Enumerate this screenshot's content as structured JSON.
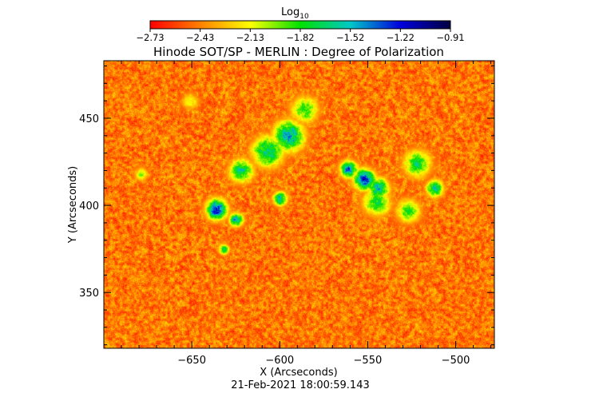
{
  "colorbar": {
    "label_base": "Log",
    "label_sub": "10",
    "min": -2.73,
    "max": -0.91,
    "tick_labels": [
      "-2.73",
      "-2.43",
      "-2.13",
      "-1.82",
      "-1.52",
      "-1.22",
      "-0.91"
    ],
    "colors": [
      "#ff0000",
      "#ff8000",
      "#ffff00",
      "#00e000",
      "#00c8c8",
      "#0000dd",
      "#000040"
    ]
  },
  "chart_data": {
    "type": "heatmap",
    "title": "Hinode SOT/SP - MERLIN : Degree of Polarization",
    "xlabel": "X (Arcseconds)",
    "ylabel": "Y (Arcseconds)",
    "xlim": [
      -700,
      -478
    ],
    "ylim": [
      318,
      483
    ],
    "x_ticks": [
      -650,
      -600,
      -550,
      -500
    ],
    "y_ticks": [
      350,
      400,
      450
    ],
    "x_tick_labels": [
      "−650",
      "−600",
      "−550",
      "−500"
    ],
    "y_tick_labels": [
      "350",
      "400",
      "450"
    ],
    "value_unit": "Log10 degree of polarization",
    "value_range": [
      -2.73,
      -0.91
    ],
    "background_level": -2.6,
    "features": [
      {
        "x": -636,
        "y": 398,
        "peak": -1.0,
        "spread": 6
      },
      {
        "x": -625,
        "y": 392,
        "peak": -1.3,
        "spread": 4
      },
      {
        "x": -622,
        "y": 420,
        "peak": -1.5,
        "spread": 7
      },
      {
        "x": -607,
        "y": 431,
        "peak": -1.4,
        "spread": 9
      },
      {
        "x": -595,
        "y": 440,
        "peak": -1.3,
        "spread": 9
      },
      {
        "x": -600,
        "y": 404,
        "peak": -1.3,
        "spread": 4
      },
      {
        "x": -586,
        "y": 455,
        "peak": -1.7,
        "spread": 8
      },
      {
        "x": -552,
        "y": 415,
        "peak": -0.95,
        "spread": 6
      },
      {
        "x": -561,
        "y": 421,
        "peak": -1.2,
        "spread": 5
      },
      {
        "x": -544,
        "y": 410,
        "peak": -1.3,
        "spread": 6
      },
      {
        "x": -545,
        "y": 402,
        "peak": -1.6,
        "spread": 8
      },
      {
        "x": -522,
        "y": 424,
        "peak": -1.6,
        "spread": 8
      },
      {
        "x": -512,
        "y": 410,
        "peak": -1.4,
        "spread": 5
      },
      {
        "x": -527,
        "y": 397,
        "peak": -1.7,
        "spread": 7
      },
      {
        "x": -632,
        "y": 375,
        "peak": -1.5,
        "spread": 3
      },
      {
        "x": -679,
        "y": 418,
        "peak": -1.9,
        "spread": 4
      },
      {
        "x": -651,
        "y": 460,
        "peak": -2.0,
        "spread": 5
      }
    ]
  },
  "timestamp": "21-Feb-2021 18:00:59.143"
}
